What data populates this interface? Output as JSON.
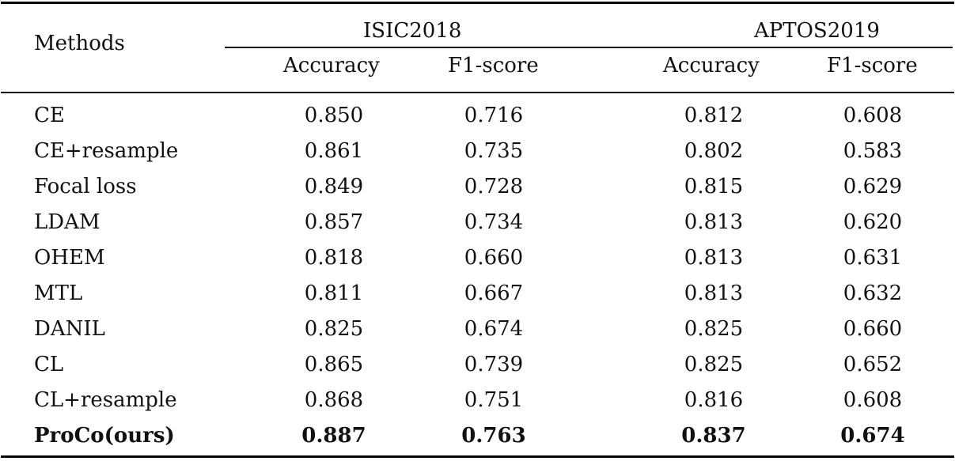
{
  "table": {
    "header": {
      "methods": "Methods",
      "groups": [
        "ISIC2018",
        "APTOS2019"
      ],
      "subcolumns": [
        "Accuracy",
        "F1-score",
        "Accuracy",
        "F1-score"
      ]
    },
    "rows": [
      {
        "method": "CE",
        "values": [
          "0.850",
          "0.716",
          "0.812",
          "0.608"
        ]
      },
      {
        "method": "CE+resample",
        "values": [
          "0.861",
          "0.735",
          "0.802",
          "0.583"
        ]
      },
      {
        "method": "Focal loss",
        "values": [
          "0.849",
          "0.728",
          "0.815",
          "0.629"
        ]
      },
      {
        "method": "LDAM",
        "values": [
          "0.857",
          "0.734",
          "0.813",
          "0.620"
        ]
      },
      {
        "method": "OHEM",
        "values": [
          "0.818",
          "0.660",
          "0.813",
          "0.631"
        ]
      },
      {
        "method": "MTL",
        "values": [
          "0.811",
          "0.667",
          "0.813",
          "0.632"
        ]
      },
      {
        "method": "DANIL",
        "values": [
          "0.825",
          "0.674",
          "0.825",
          "0.660"
        ]
      },
      {
        "method": "CL",
        "values": [
          "0.865",
          "0.739",
          "0.825",
          "0.652"
        ]
      },
      {
        "method": "CL+resample",
        "values": [
          "0.868",
          "0.751",
          "0.816",
          "0.608"
        ]
      },
      {
        "method": "ProCo(ours)",
        "values": [
          "0.887",
          "0.763",
          "0.837",
          "0.674"
        ],
        "bold": true
      }
    ]
  }
}
